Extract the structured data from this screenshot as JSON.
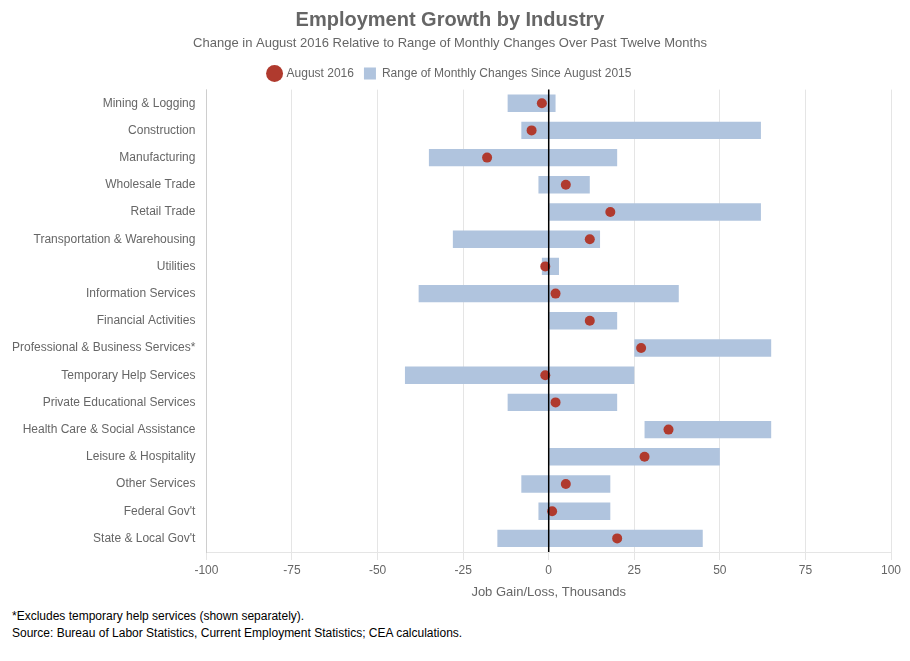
{
  "chart_data": {
    "type": "bar",
    "orientation": "horizontal",
    "title": "Employment Growth by Industry",
    "subtitle": "Change in August 2016 Relative to Range of Monthly Changes Over Past Twelve Months",
    "xlabel": "Job Gain/Loss, Thousands",
    "annotations": [
      "*Excludes temporary help services (shown separately).",
      "Source: Bureau of Labor Statistics, Current Employment Statistics; CEA calculations."
    ],
    "categories": [
      "Mining & Logging",
      "Construction",
      "Manufacturing",
      "Wholesale Trade",
      "Retail Trade",
      "Transportation & Warehousing",
      "Utilities",
      "Information Services",
      "Financial Activities",
      "Professional & Business Services*",
      "Temporary Help Services",
      "Private Educational Services",
      "Health Care & Social Assistance",
      "Leisure & Hospitality",
      "Other Services",
      "Federal Gov't",
      "State & Local Gov't"
    ],
    "series": [
      {
        "name": "Range of Monthly Changes Since August 2015",
        "type": "bar",
        "color": "#b0c4de",
        "min": [
          -12,
          -8,
          -35,
          -3,
          0,
          -28,
          -2,
          -38,
          0,
          25,
          -42,
          -12,
          28,
          0,
          -8,
          -3,
          -15
        ],
        "max": [
          2,
          62,
          20,
          12,
          62,
          15,
          3,
          38,
          20,
          65,
          25,
          20,
          65,
          50,
          18,
          18,
          45
        ]
      },
      {
        "name": "August 2016",
        "type": "scatter",
        "marker": "circle",
        "color": "#b03a2e",
        "values": [
          -2,
          -5,
          -18,
          5,
          18,
          12,
          -1,
          2,
          12,
          27,
          -1,
          2,
          35,
          28,
          5,
          1,
          20
        ]
      }
    ],
    "xlim": [
      -100,
      100
    ],
    "xticks": [
      -100,
      -75,
      -50,
      -25,
      0,
      25,
      50,
      75,
      100
    ],
    "vline": 0,
    "grid": true,
    "legend": "top"
  }
}
